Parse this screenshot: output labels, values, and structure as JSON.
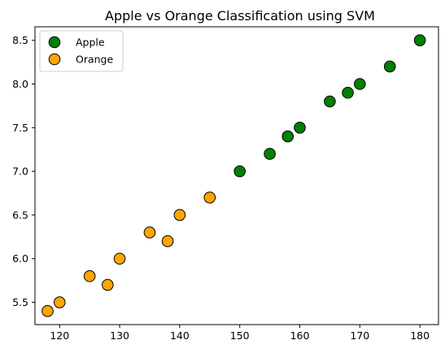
{
  "chart_data": {
    "type": "scatter",
    "title": "Apple vs Orange Classification using SVM",
    "xlabel": "",
    "ylabel": "",
    "xlim": [
      115.9,
      183.1
    ],
    "ylim": [
      5.245,
      8.655
    ],
    "xticks": [
      120,
      130,
      140,
      150,
      160,
      170,
      180
    ],
    "yticks": [
      5.5,
      6.0,
      6.5,
      7.0,
      7.5,
      8.0,
      8.5
    ],
    "xtick_labels": [
      "120",
      "130",
      "140",
      "150",
      "160",
      "170",
      "180"
    ],
    "ytick_labels": [
      "5.5",
      "6.0",
      "6.5",
      "7.0",
      "7.5",
      "8.0",
      "8.5"
    ],
    "grid": false,
    "legend_position": "top-left",
    "series": [
      {
        "name": "Apple",
        "color": "#008000",
        "edge_color": "#000000",
        "points": [
          [
            150,
            7.0
          ],
          [
            155,
            7.2
          ],
          [
            158,
            7.4
          ],
          [
            160,
            7.5
          ],
          [
            165,
            7.8
          ],
          [
            168,
            7.9
          ],
          [
            170,
            8.0
          ],
          [
            175,
            8.2
          ],
          [
            180,
            8.5
          ]
        ]
      },
      {
        "name": "Orange",
        "color": "#FFA500",
        "edge_color": "#000000",
        "points": [
          [
            118,
            5.4
          ],
          [
            120,
            5.5
          ],
          [
            125,
            5.8
          ],
          [
            128,
            5.7
          ],
          [
            130,
            6.0
          ],
          [
            135,
            6.3
          ],
          [
            138,
            6.2
          ],
          [
            140,
            6.5
          ],
          [
            145,
            6.7
          ]
        ]
      }
    ]
  }
}
